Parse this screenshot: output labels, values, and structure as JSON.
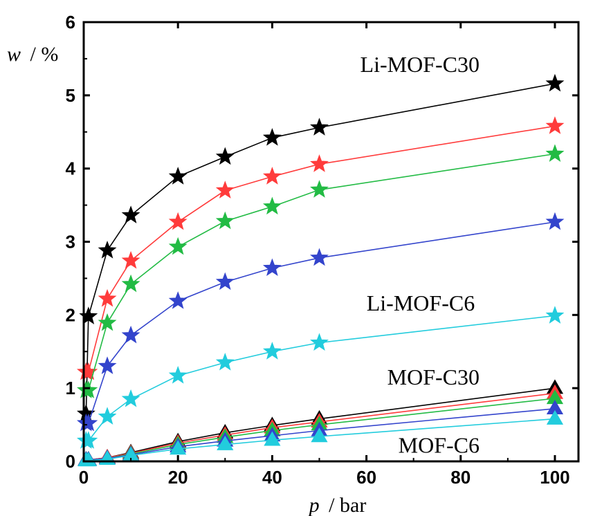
{
  "chart_data": {
    "type": "line",
    "title": "",
    "xlabel": {
      "var": "p",
      "unit": "/ bar"
    },
    "ylabel": {
      "var": "w",
      "unit": "/ %"
    },
    "xlim": [
      0,
      105
    ],
    "ylim": [
      0,
      6
    ],
    "xticks": [
      "0",
      "20",
      "40",
      "60",
      "80",
      "100"
    ],
    "yticks": [
      "0",
      "1",
      "2",
      "3",
      "4",
      "5",
      "6"
    ],
    "grid": false,
    "legend": "none",
    "x": [
      0.5,
      1,
      5,
      10,
      20,
      30,
      40,
      50,
      100
    ],
    "series": [
      {
        "group": "Li-MOF",
        "marker": "star",
        "color": "#000000",
        "values": [
          0.65,
          1.98,
          2.88,
          3.36,
          3.89,
          4.16,
          4.42,
          4.56,
          5.16
        ]
      },
      {
        "group": "Li-MOF",
        "marker": "star",
        "color": "#ff3b3b",
        "values": [
          1.22,
          1.22,
          2.22,
          2.74,
          3.27,
          3.7,
          3.89,
          4.06,
          4.58
        ]
      },
      {
        "group": "Li-MOF",
        "marker": "star",
        "color": "#22bb44",
        "values": [
          0.97,
          0.97,
          1.89,
          2.42,
          2.93,
          3.28,
          3.48,
          3.71,
          4.2
        ]
      },
      {
        "group": "Li-MOF",
        "marker": "star",
        "color": "#3344cc",
        "values": [
          0.52,
          0.52,
          1.3,
          1.72,
          2.19,
          2.45,
          2.64,
          2.78,
          3.27
        ]
      },
      {
        "group": "Li-MOF",
        "marker": "star",
        "color": "#22ccdd",
        "values": [
          0.28,
          0.28,
          0.61,
          0.85,
          1.17,
          1.35,
          1.5,
          1.62,
          1.99
        ]
      },
      {
        "group": "MOF",
        "marker": "triangle",
        "color": "#000000",
        "values": [
          0.02,
          0.02,
          0.05,
          0.12,
          0.27,
          0.39,
          0.49,
          0.58,
          1.0
        ]
      },
      {
        "group": "MOF",
        "marker": "triangle",
        "color": "#ff3b3b",
        "values": [
          0.02,
          0.02,
          0.05,
          0.11,
          0.25,
          0.36,
          0.46,
          0.54,
          0.93
        ]
      },
      {
        "group": "MOF",
        "marker": "triangle",
        "color": "#22bb44",
        "values": [
          0.02,
          0.02,
          0.04,
          0.1,
          0.23,
          0.33,
          0.42,
          0.5,
          0.86
        ]
      },
      {
        "group": "MOF",
        "marker": "triangle",
        "color": "#3344cc",
        "values": [
          0.02,
          0.02,
          0.04,
          0.09,
          0.2,
          0.28,
          0.35,
          0.42,
          0.72
        ]
      },
      {
        "group": "MOF",
        "marker": "triangle",
        "color": "#22ccdd",
        "values": [
          0.01,
          0.01,
          0.03,
          0.08,
          0.17,
          0.23,
          0.29,
          0.34,
          0.58
        ]
      }
    ],
    "annotations": [
      {
        "text": "Li-MOF-C30",
        "at": [
          84,
          5.32
        ]
      },
      {
        "text": "Li-MOF-C6",
        "at": [
          83,
          2.06
        ]
      },
      {
        "text": "MOF-C30",
        "at": [
          84,
          1.05
        ]
      },
      {
        "text": "MOF-C6",
        "at": [
          84,
          0.12
        ]
      }
    ]
  }
}
